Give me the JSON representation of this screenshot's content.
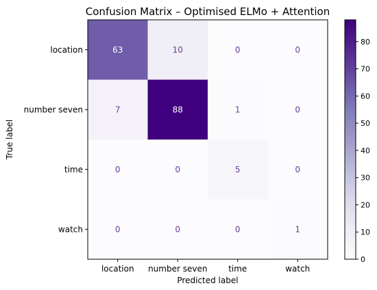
{
  "chart_data": {
    "type": "heatmap",
    "title": "Confusion Matrix – Optimised ELMo + Attention",
    "xlabel": "Predicted label",
    "ylabel": "True label",
    "x_categories": [
      "location",
      "number seven",
      "time",
      "watch"
    ],
    "y_categories": [
      "location",
      "number seven",
      "time",
      "watch"
    ],
    "values": [
      [
        63,
        10,
        0,
        0
      ],
      [
        7,
        88,
        1,
        0
      ],
      [
        0,
        0,
        5,
        0
      ],
      [
        0,
        0,
        0,
        1
      ]
    ],
    "colorbar": {
      "colormap": "Purples",
      "range": [
        0,
        88
      ],
      "ticks": [
        0,
        10,
        20,
        30,
        40,
        50,
        60,
        70,
        80
      ]
    },
    "annotation_colors": {
      "light": "#ffffff",
      "dark": "#6a3d9a"
    },
    "grid": false
  }
}
